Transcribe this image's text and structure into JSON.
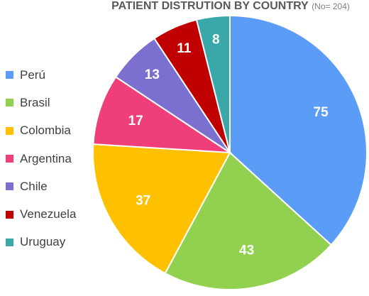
{
  "chart_data": {
    "type": "pie",
    "title": "PATIENT DISTRUTION BY COUNTRY",
    "subtitle": "(No= 204)",
    "legend_position": "left",
    "slices": [
      {
        "name": "Perú",
        "value": 75,
        "color": "#5b9cf6"
      },
      {
        "name": "Brasil",
        "value": 43,
        "color": "#92d050"
      },
      {
        "name": "Colombia",
        "value": 37,
        "color": "#ffc000"
      },
      {
        "name": "Argentina",
        "value": 17,
        "color": "#f03e7a"
      },
      {
        "name": "Chile",
        "value": 13,
        "color": "#7b6fd0"
      },
      {
        "name": "Venezuela",
        "value": 11,
        "color": "#c00000"
      },
      {
        "name": "Uruguay",
        "value": 8,
        "color": "#3aa8a8"
      }
    ]
  }
}
